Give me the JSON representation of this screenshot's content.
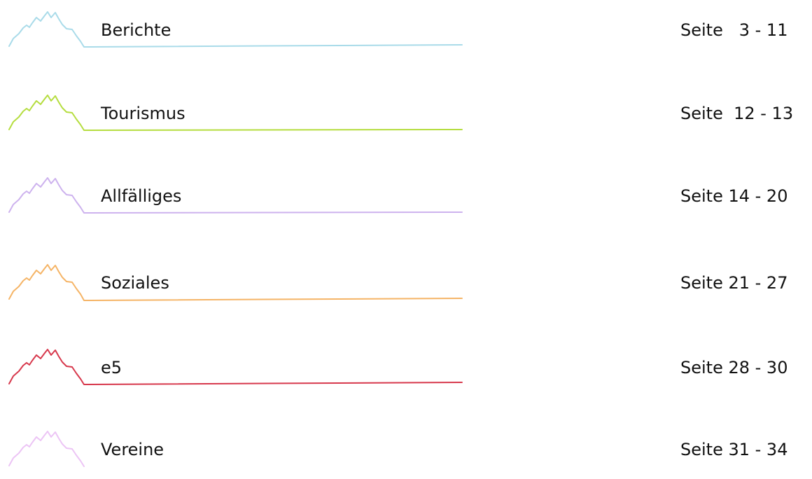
{
  "toc": {
    "entries": [
      {
        "title": "Berichte",
        "pages": "Seite   3 - 11",
        "color": "#a9dbe9"
      },
      {
        "title": "Tourismus",
        "pages": "Seite  12 - 13",
        "color": "#b5dd3f"
      },
      {
        "title": "Allfälliges",
        "pages": "Seite 14 - 20",
        "color": "#cdb2ee"
      },
      {
        "title": "Soziales",
        "pages": "Seite 21 - 27",
        "color": "#f5b466"
      },
      {
        "title": "e5",
        "pages": "Seite 28 - 30",
        "color": "#d7384c"
      },
      {
        "title": "Vereine",
        "pages": "Seite 31 - 34",
        "color": "#ecc4f5"
      }
    ]
  }
}
